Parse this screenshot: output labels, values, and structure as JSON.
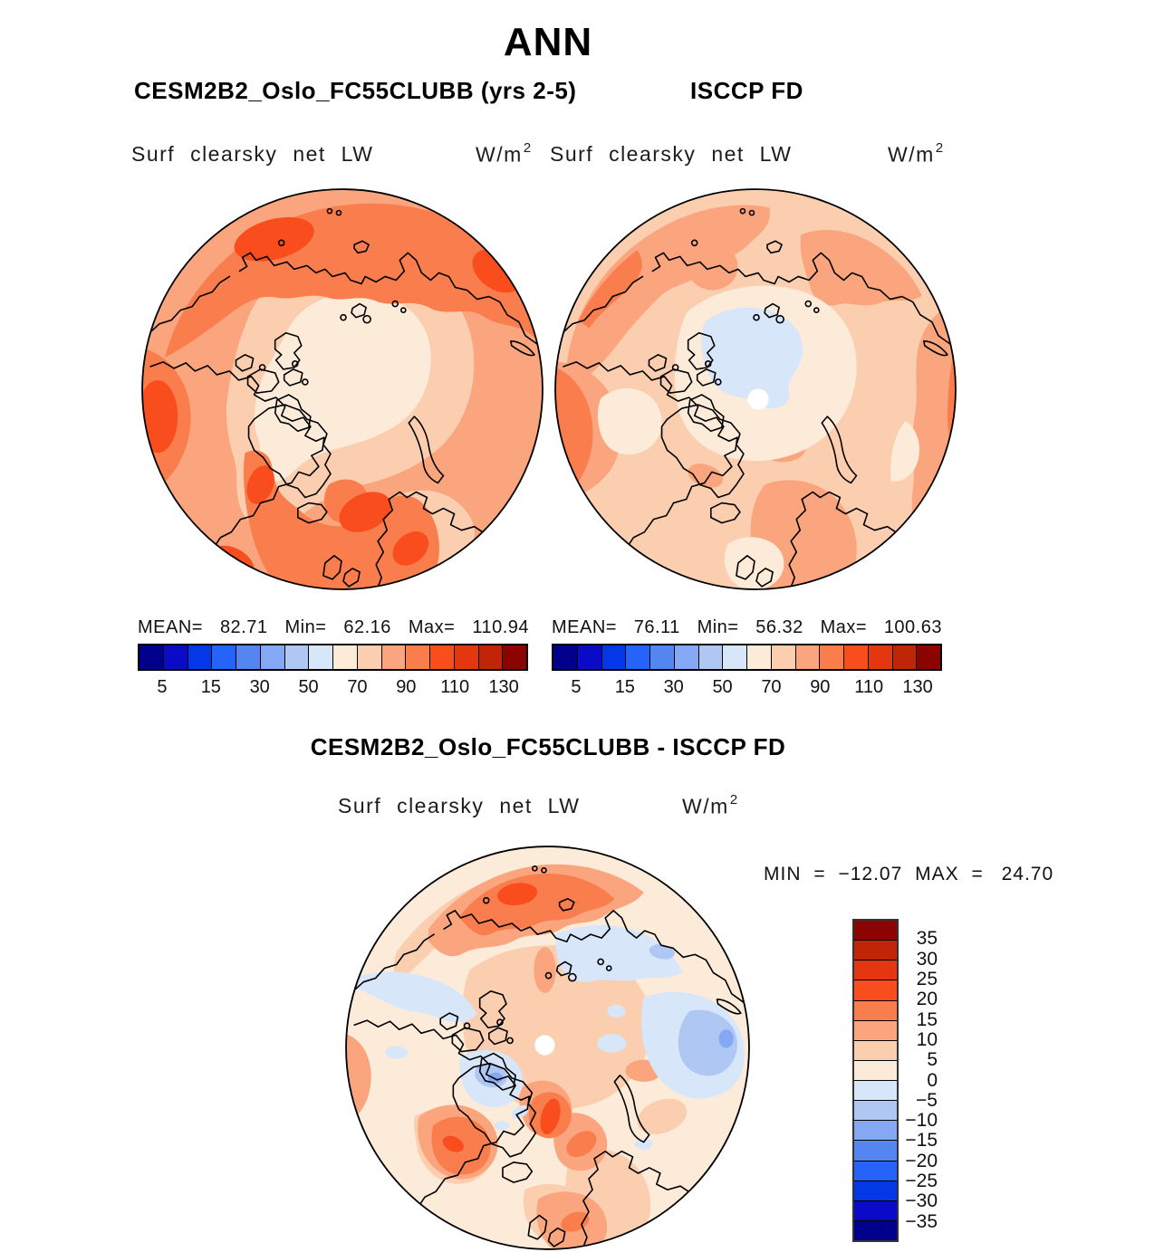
{
  "header": {
    "season": "ANN"
  },
  "panels": {
    "model": {
      "title": "CESM2B2_Oslo_FC55CLUBB (yrs 2-5)",
      "field": "Surf clearsky net LW",
      "units_base": "W/m",
      "units_exp": "2",
      "stats": {
        "mean_label": "MEAN=",
        "mean": "82.71",
        "min_label": "Min=",
        "min": "62.16",
        "max_label": "Max=",
        "max": "110.94"
      },
      "colorbar_ticks": [
        "5",
        "15",
        "30",
        "50",
        "70",
        "90",
        "110",
        "130"
      ]
    },
    "obs": {
      "title": "ISCCP FD",
      "field": "Surf clearsky net LW",
      "units_base": "W/m",
      "units_exp": "2",
      "stats": {
        "mean_label": "MEAN=",
        "mean": "76.11",
        "min_label": "Min=",
        "min": "56.32",
        "max_label": "Max=",
        "max": "100.63"
      },
      "colorbar_ticks": [
        "5",
        "15",
        "30",
        "50",
        "70",
        "90",
        "110",
        "130"
      ]
    },
    "diff": {
      "title": "CESM2B2_Oslo_FC55CLUBB - ISCCP FD",
      "field": "Surf clearsky net LW",
      "units_base": "W/m",
      "units_exp": "2",
      "minmax": {
        "min_label": "MIN",
        "eq1": "=",
        "min": "−12.07",
        "max_label": "MAX",
        "eq2": "=",
        "max": "24.70"
      },
      "colorbar_ticks": [
        "35",
        "30",
        "25",
        "20",
        "15",
        "10",
        "5",
        "0",
        "−5",
        "−10",
        "−15",
        "−20",
        "−25",
        "−30",
        "−35"
      ]
    }
  },
  "palette_blue_to_red": [
    "#00008B",
    "#0A0AC8",
    "#0437E8",
    "#2563FA",
    "#5486F2",
    "#84A8F4",
    "#AEC8F3",
    "#D8E6FA",
    "#FDEBDA",
    "#FBCEB0",
    "#FAA57D",
    "#FA7E4D",
    "#F94D1D",
    "#E43711",
    "#C02508",
    "#8B0400"
  ],
  "chart_data": [
    {
      "type": "heatmap",
      "title": "CESM2B2_Oslo_FC55CLUBB (yrs 2-5)",
      "subtitle": "Surf clearsky net LW",
      "season": "ANN",
      "units": "W/m^2",
      "projection": "north polar stereographic",
      "stats": {
        "mean": 82.71,
        "min": 62.16,
        "max": 110.94
      },
      "contour_levels": [
        5,
        10,
        15,
        20,
        30,
        40,
        50,
        60,
        70,
        80,
        90,
        100,
        110,
        120,
        130
      ],
      "labeled_ticks": [
        5,
        15,
        30,
        50,
        70,
        90,
        110,
        130
      ],
      "n_colors": 16,
      "palette": "blue_to_red_16",
      "legend_position": "below"
    },
    {
      "type": "heatmap",
      "title": "ISCCP FD",
      "subtitle": "Surf clearsky net LW",
      "season": "ANN",
      "units": "W/m^2",
      "projection": "north polar stereographic",
      "stats": {
        "mean": 76.11,
        "min": 56.32,
        "max": 100.63
      },
      "contour_levels": [
        5,
        10,
        15,
        20,
        30,
        40,
        50,
        60,
        70,
        80,
        90,
        100,
        110,
        120,
        130
      ],
      "labeled_ticks": [
        5,
        15,
        30,
        50,
        70,
        90,
        110,
        130
      ],
      "n_colors": 16,
      "palette": "blue_to_red_16",
      "legend_position": "below"
    },
    {
      "type": "heatmap",
      "title": "CESM2B2_Oslo_FC55CLUBB - ISCCP FD",
      "subtitle": "Surf clearsky net LW",
      "season": "ANN",
      "units": "W/m^2",
      "projection": "north polar stereographic",
      "stats": {
        "min": -12.07,
        "max": 24.7
      },
      "contour_levels": [
        -35,
        -30,
        -25,
        -20,
        -15,
        -10,
        -5,
        0,
        5,
        10,
        15,
        20,
        25,
        30,
        35
      ],
      "labeled_ticks": [
        35,
        30,
        25,
        20,
        15,
        10,
        5,
        0,
        -5,
        -10,
        -15,
        -20,
        -25,
        -30,
        -35
      ],
      "n_colors": 16,
      "palette": "blue_to_red_16",
      "legend_position": "right"
    }
  ]
}
